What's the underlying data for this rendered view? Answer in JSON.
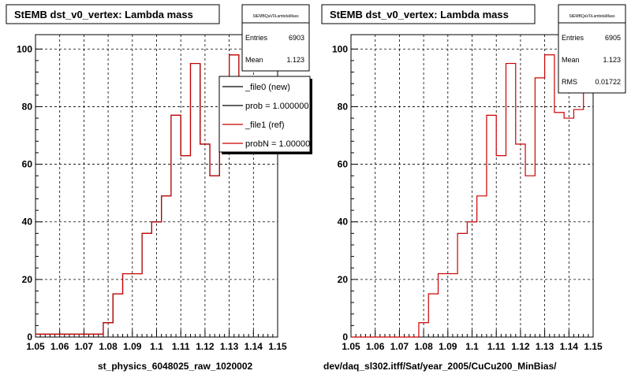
{
  "footer": {
    "left_label": "st_physics_6048025_raw_1020002",
    "right_label": "dev/daq_sl302.itff/Sat/year_2005/CuCu200_MinBias/"
  },
  "chart_data": [
    {
      "type": "histogram",
      "title": "StEMB dst_v0_vertex: Lambda mass",
      "xlim": [
        1.05,
        1.15
      ],
      "ylim": [
        0,
        105
      ],
      "xticks": [
        1.05,
        1.06,
        1.07,
        1.08,
        1.09,
        1.1,
        1.11,
        1.12,
        1.13,
        1.14,
        1.15
      ],
      "xtick_labels": [
        "1.05",
        "1.06",
        "1.07",
        "1.08",
        "1.09",
        "1.1",
        "1.11",
        "1.12",
        "1.13",
        "1.14",
        "1.15"
      ],
      "yticks": [
        0,
        20,
        40,
        60,
        80,
        100
      ],
      "grid": true,
      "bin_edges": [
        1.05,
        1.054,
        1.058,
        1.062,
        1.066,
        1.07,
        1.074,
        1.078,
        1.082,
        1.086,
        1.09,
        1.094,
        1.098,
        1.102,
        1.106,
        1.11,
        1.114,
        1.118,
        1.122,
        1.126,
        1.13,
        1.134,
        1.138,
        1.142,
        1.146,
        1.15
      ],
      "series": [
        {
          "name": "_file0 (new)",
          "color": "#000000",
          "values": [
            1,
            1,
            1,
            1,
            1,
            1,
            1,
            5,
            15,
            22,
            22,
            36,
            40,
            49,
            77,
            63,
            95,
            67,
            56,
            90,
            98,
            78,
            76,
            79,
            79
          ]
        },
        {
          "name": "_file1 (ref)",
          "color": "#cc0000",
          "values": [
            1,
            1,
            1,
            1,
            1,
            1,
            1,
            5,
            15,
            22,
            22,
            36,
            40,
            49,
            77,
            63,
            95,
            67,
            56,
            90,
            98,
            78,
            76,
            79,
            79
          ]
        }
      ],
      "stats": {
        "name": "StEMBQaV0LambdaMass",
        "entries_label": "Entries",
        "entries": "6903",
        "mean_label": "Mean",
        "mean": "1.123"
      },
      "legend": {
        "placement": "top-right",
        "entries": [
          "_file0 (new)",
          "prob = 1.000000",
          "_file1 (ref)",
          "probN = 1.000000"
        ]
      }
    },
    {
      "type": "histogram",
      "title": "StEMB dst_v0_vertex: Lambda mass",
      "xlim": [
        1.05,
        1.15
      ],
      "ylim": [
        0,
        105
      ],
      "xticks": [
        1.05,
        1.06,
        1.07,
        1.08,
        1.09,
        1.1,
        1.11,
        1.12,
        1.13,
        1.14,
        1.15
      ],
      "xtick_labels": [
        "1.05",
        "1.06",
        "1.07",
        "1.08",
        "1.09",
        "1.1",
        "1.11",
        "1.12",
        "1.13",
        "1.14",
        "1.15"
      ],
      "yticks": [
        0,
        20,
        40,
        60,
        80,
        100
      ],
      "grid": true,
      "bin_edges": [
        1.05,
        1.054,
        1.058,
        1.062,
        1.066,
        1.07,
        1.074,
        1.078,
        1.082,
        1.086,
        1.09,
        1.094,
        1.098,
        1.102,
        1.106,
        1.11,
        1.114,
        1.118,
        1.122,
        1.126,
        1.13,
        1.134,
        1.138,
        1.142,
        1.146,
        1.15
      ],
      "series": [
        {
          "name": "",
          "color": "#cc0000",
          "values": [
            0,
            0,
            0,
            0,
            0,
            0,
            0,
            5,
            15,
            22,
            22,
            36,
            40,
            49,
            77,
            63,
            95,
            67,
            56,
            90,
            98,
            78,
            76,
            79,
            85
          ]
        }
      ],
      "stats": {
        "name": "StEMBQaV0LambdaMass",
        "entries_label": "Entries",
        "entries": "6905",
        "mean_label": "Mean",
        "mean": "1.123",
        "rms_label": "RMS",
        "rms": "0.01722"
      }
    }
  ]
}
